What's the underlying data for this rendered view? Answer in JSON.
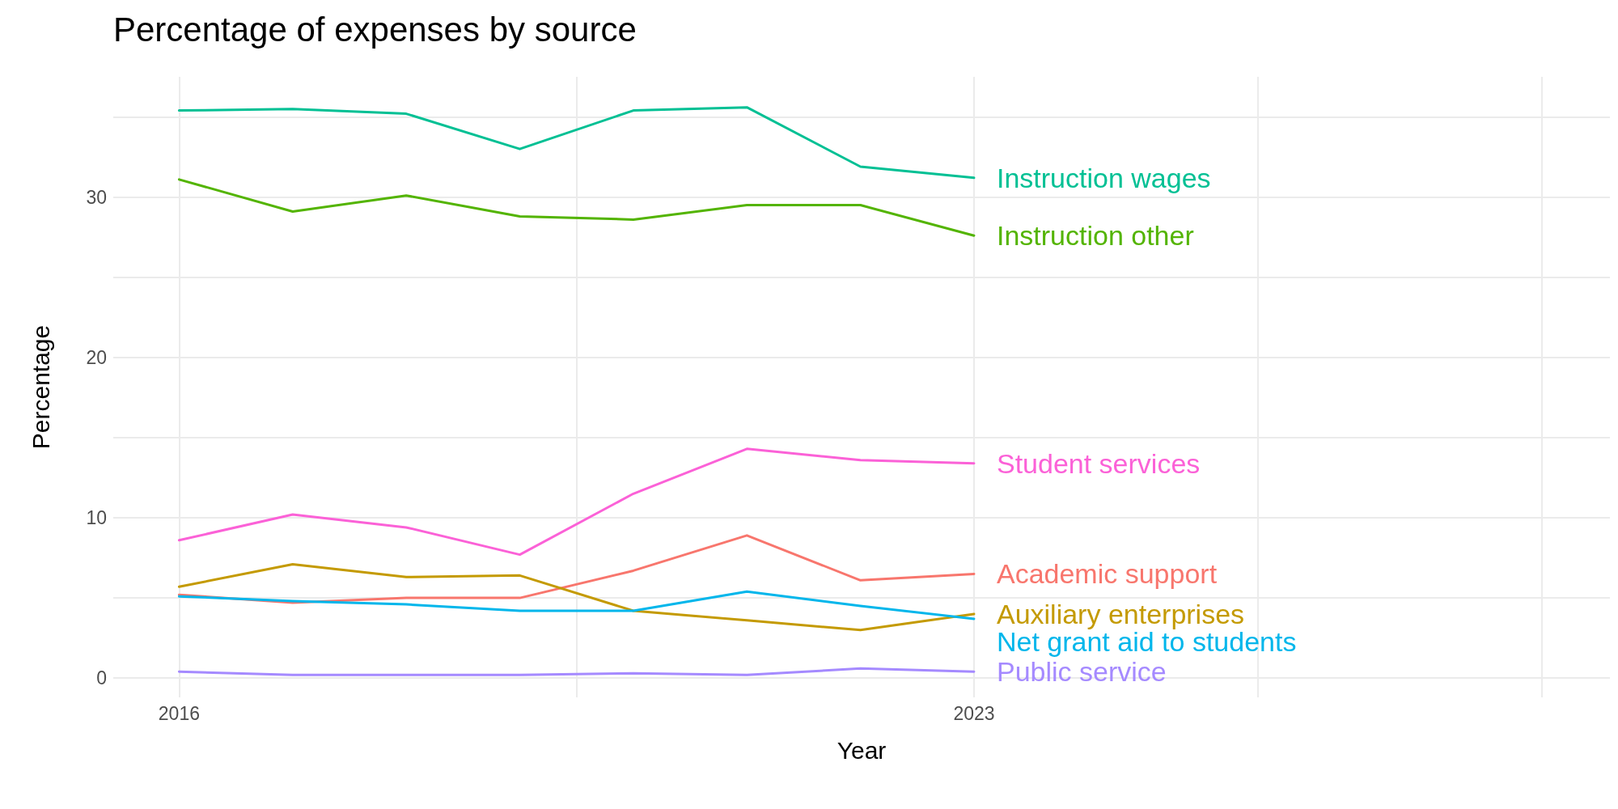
{
  "chart_data": {
    "type": "line",
    "title": "Percentage of expenses by source",
    "xlabel": "Year",
    "ylabel": "Percentage",
    "x": [
      2016,
      2017,
      2018,
      2019,
      2020,
      2021,
      2022,
      2023
    ],
    "xlim": [
      2015.42,
      2028.6
    ],
    "xticks": [
      2016,
      {
        "value": 2019.5,
        "label": null
      },
      2023,
      {
        "value": 2025.5,
        "label": null
      },
      {
        "value": 2028,
        "label": null
      }
    ],
    "ylim": [
      -1.2,
      37.5
    ],
    "yticks": [
      0,
      {
        "value": 5,
        "label": null
      },
      10,
      {
        "value": 15,
        "label": null
      },
      20,
      {
        "value": 25,
        "label": null
      },
      30,
      {
        "value": 35,
        "label": null
      }
    ],
    "grid": true,
    "legend": false,
    "marker": "none",
    "line_style": "solid",
    "series": [
      {
        "name": "Instruction wages",
        "color": "#00c094",
        "values": [
          35.4,
          35.5,
          35.2,
          33.0,
          35.4,
          35.6,
          31.9,
          31.2
        ]
      },
      {
        "name": "Instruction other",
        "color": "#53b400",
        "values": [
          31.1,
          29.1,
          30.1,
          28.8,
          28.6,
          29.5,
          29.5,
          27.6
        ]
      },
      {
        "name": "Student services",
        "color": "#fb61d7",
        "values": [
          8.6,
          10.2,
          9.4,
          7.7,
          11.5,
          14.3,
          13.6,
          13.4
        ]
      },
      {
        "name": "Academic support",
        "color": "#f8766d",
        "values": [
          5.2,
          4.7,
          5.0,
          5.0,
          6.7,
          8.9,
          6.1,
          6.5
        ]
      },
      {
        "name": "Auxiliary enterprises",
        "color": "#c49a00",
        "values": [
          5.7,
          7.1,
          6.3,
          6.4,
          4.2,
          3.6,
          3.0,
          4.0
        ]
      },
      {
        "name": "Net grant aid to students",
        "color": "#00b6eb",
        "values": [
          5.1,
          4.8,
          4.6,
          4.2,
          4.2,
          5.4,
          4.5,
          3.7
        ]
      },
      {
        "name": "Public service",
        "color": "#a58aff",
        "values": [
          0.4,
          0.2,
          0.2,
          0.2,
          0.3,
          0.2,
          0.6,
          0.4
        ]
      }
    ]
  }
}
